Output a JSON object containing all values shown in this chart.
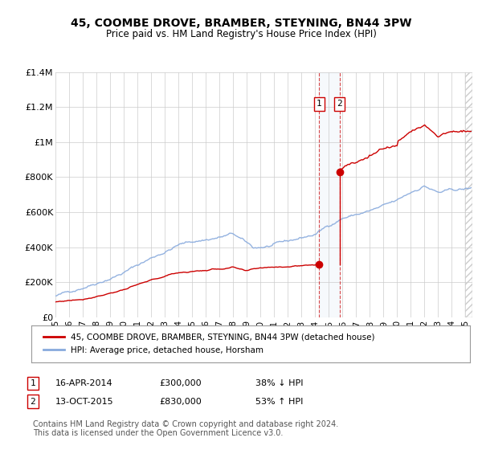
{
  "title": "45, COOMBE DROVE, BRAMBER, STEYNING, BN44 3PW",
  "subtitle": "Price paid vs. HM Land Registry's House Price Index (HPI)",
  "title_fontsize": 10,
  "subtitle_fontsize": 8.5,
  "background_color": "#ffffff",
  "plot_bg_color": "#ffffff",
  "grid_color": "#cccccc",
  "ylim": [
    0,
    1400000
  ],
  "xlim_start": 1995.0,
  "xlim_end": 2025.5,
  "yticks": [
    0,
    200000,
    400000,
    600000,
    800000,
    1000000,
    1200000,
    1400000
  ],
  "ytick_labels": [
    "£0",
    "£200K",
    "£400K",
    "£600K",
    "£800K",
    "£1M",
    "£1.2M",
    "£1.4M"
  ],
  "xticks": [
    1995,
    1996,
    1997,
    1998,
    1999,
    2000,
    2001,
    2002,
    2003,
    2004,
    2005,
    2006,
    2007,
    2008,
    2009,
    2010,
    2011,
    2012,
    2013,
    2014,
    2015,
    2016,
    2017,
    2018,
    2019,
    2020,
    2021,
    2022,
    2023,
    2024,
    2025
  ],
  "transaction1_x": 2014.29,
  "transaction1_y": 300000,
  "transaction2_x": 2015.79,
  "transaction2_y": 830000,
  "transaction1_label": "1",
  "transaction2_label": "2",
  "vline1_x": 2014.29,
  "vline2_x": 2015.79,
  "red_line_color": "#cc0000",
  "blue_line_color": "#88aadd",
  "marker_color_1": "#cc0000",
  "marker_color_2": "#cc0000",
  "legend_label_red": "45, COOMBE DROVE, BRAMBER, STEYNING, BN44 3PW (detached house)",
  "legend_label_blue": "HPI: Average price, detached house, Horsham",
  "annotation1_date": "16-APR-2014",
  "annotation1_price": "£300,000",
  "annotation1_hpi": "38% ↓ HPI",
  "annotation2_date": "13-OCT-2015",
  "annotation2_price": "£830,000",
  "annotation2_hpi": "53% ↑ HPI",
  "footer": "Contains HM Land Registry data © Crown copyright and database right 2024.\nThis data is licensed under the Open Government Licence v3.0.",
  "footer_fontsize": 7,
  "shade_color": "#dce8f5",
  "hatch_color": "#bbbbbb"
}
